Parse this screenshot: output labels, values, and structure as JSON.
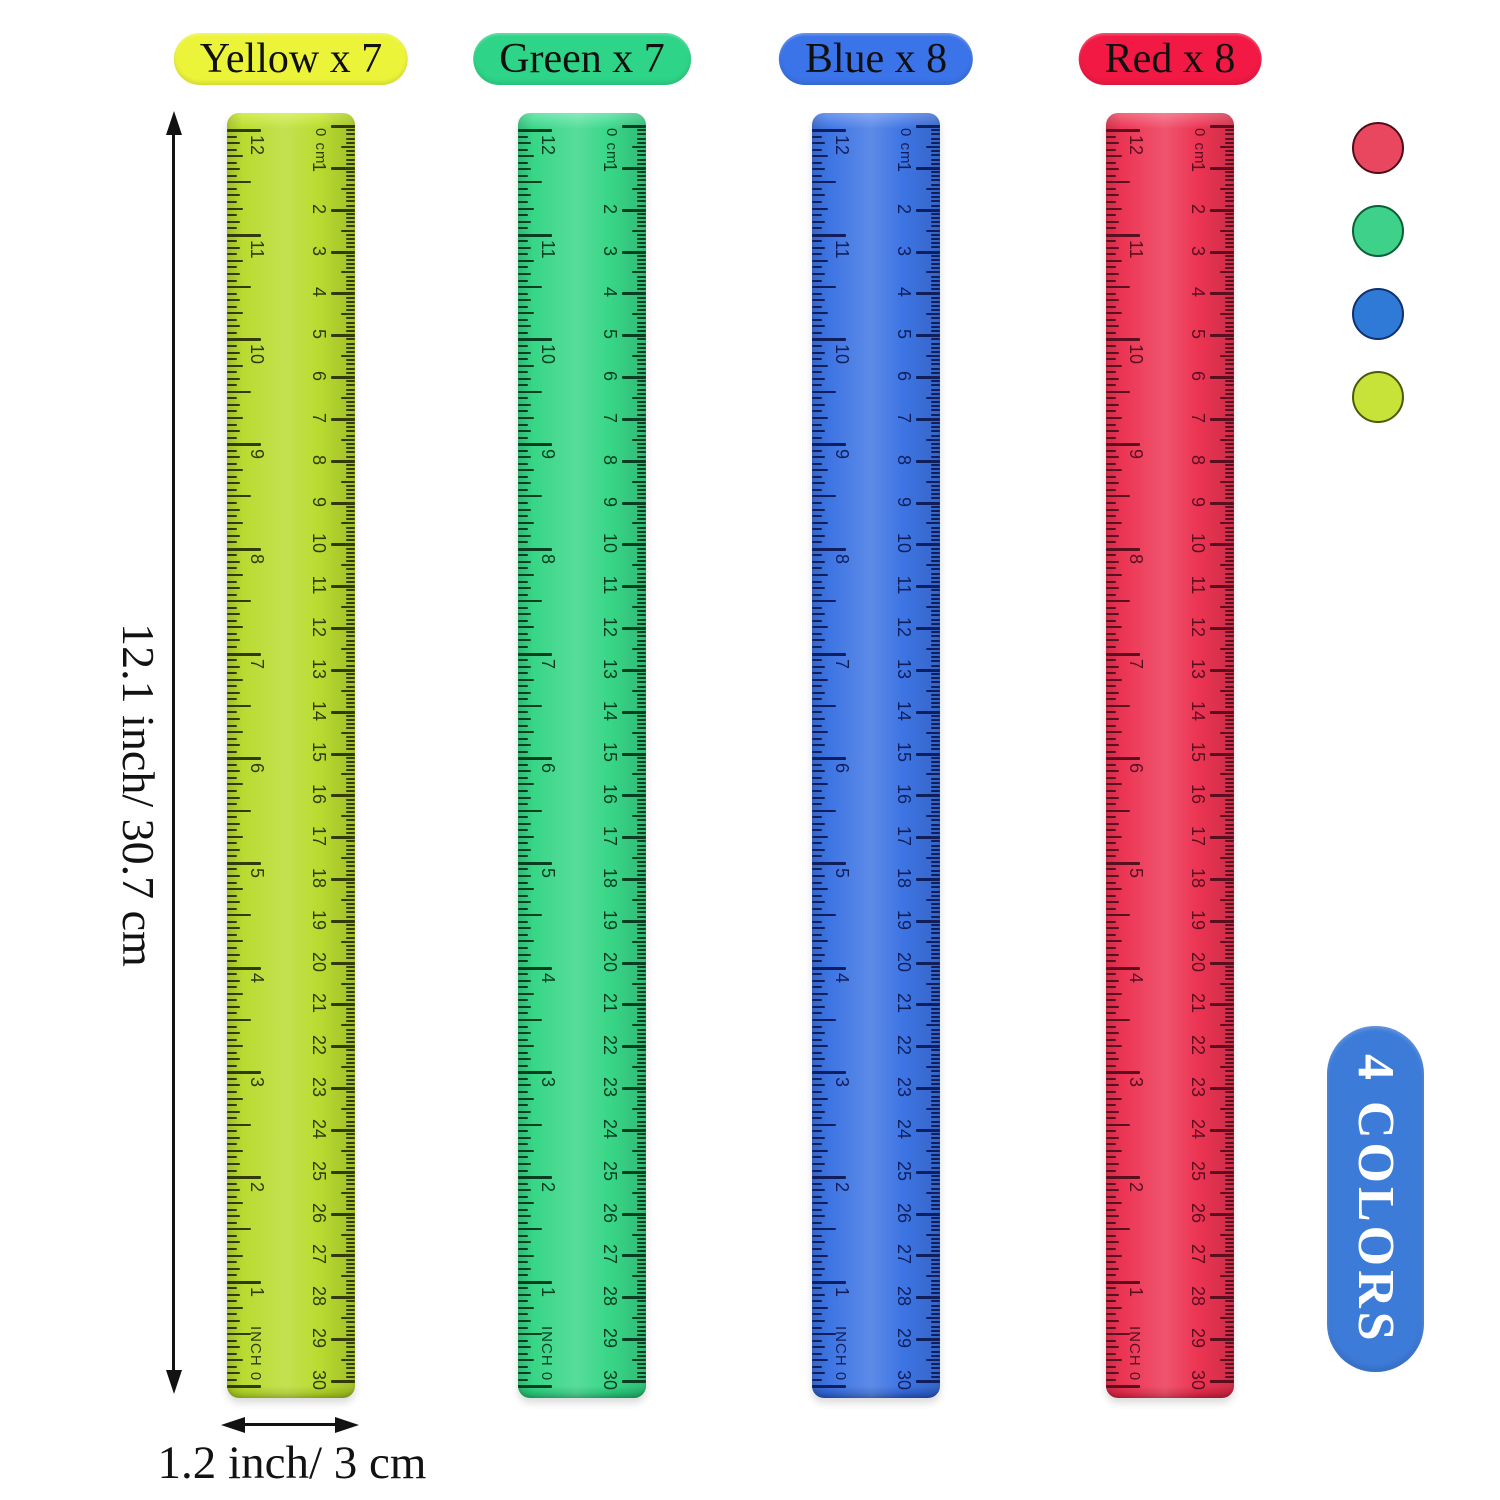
{
  "title_labels": [
    {
      "text": "Yellow x 7",
      "bg": "#ecf43a"
    },
    {
      "text": "Green x 7",
      "bg": "#2ed487"
    },
    {
      "text": "Blue x 8",
      "bg": "#3b74e8"
    },
    {
      "text": "Red x 8",
      "bg": "#f21944"
    }
  ],
  "rulers": [
    {
      "name": "yellow",
      "body": "#b9db30",
      "light": "#d2ee52",
      "dark": "#94b51a",
      "ink": "#313a08"
    },
    {
      "name": "green",
      "body": "#38d687",
      "light": "#6fe7af",
      "dark": "#1cab66",
      "ink": "#073d20"
    },
    {
      "name": "blue",
      "body": "#3d74e3",
      "light": "#7199f0",
      "dark": "#2350b5",
      "ink": "#101f5c"
    },
    {
      "name": "red",
      "body": "#ec3453",
      "light": "#f4697f",
      "dark": "#c21d3a",
      "ink": "#5a0f20"
    }
  ],
  "scale": {
    "cm_unit_label": "0 cm",
    "cm_numbers": [
      1,
      2,
      3,
      4,
      5,
      6,
      7,
      8,
      9,
      10,
      11,
      12,
      13,
      14,
      15,
      16,
      17,
      18,
      19,
      20,
      21,
      22,
      23,
      24,
      25,
      26,
      27,
      28,
      29,
      30
    ],
    "inch_unit_label": "INCH 0",
    "inch_numbers": [
      12,
      11,
      10,
      9,
      8,
      7,
      6,
      5,
      4,
      3,
      2,
      1
    ]
  },
  "annotations": {
    "height_label": "12.1 inch/ 30.7 cm",
    "width_label": "1.2 inch/ 3 cm"
  },
  "swatches": [
    {
      "name": "red",
      "fill": "#e9465f",
      "ring": "#4f0d1a"
    },
    {
      "name": "green",
      "fill": "#3ed189",
      "ring": "#0b5e35"
    },
    {
      "name": "blue",
      "fill": "#2f7ad7",
      "ring": "#10306e"
    },
    {
      "name": "yellow-green",
      "fill": "#c7e339",
      "ring": "#4c5a07"
    }
  ],
  "badge": {
    "text": "4 COLORS",
    "bg": "#3d7bd8",
    "fg": "#ffffff"
  }
}
